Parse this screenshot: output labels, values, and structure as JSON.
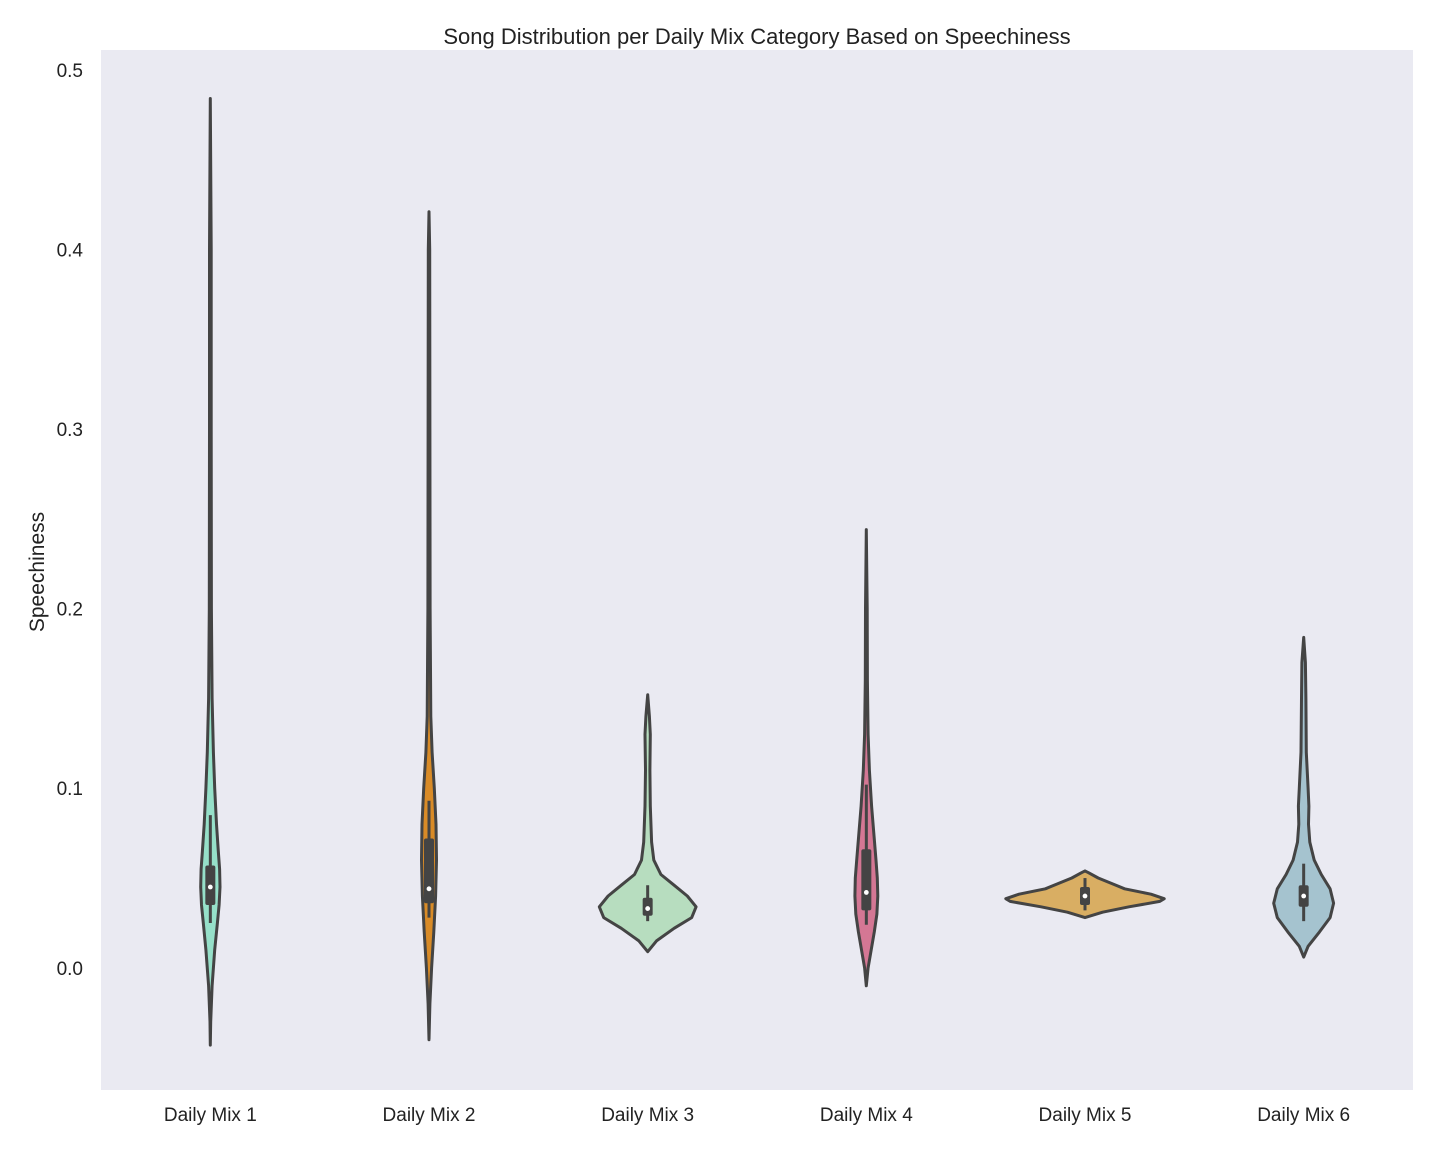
{
  "chart_data": {
    "type": "violin",
    "title": "Song Distribution per Daily Mix Category Based on Speechiness",
    "xlabel": "",
    "ylabel": "Speechiness",
    "ylim": [
      -0.068,
      0.511
    ],
    "yticks": [
      "0.0",
      "0.1",
      "0.2",
      "0.3",
      "0.4",
      "0.5"
    ],
    "ytick_values": [
      0.0,
      0.1,
      0.2,
      0.3,
      0.4,
      0.5
    ],
    "grid": false,
    "legend": "none",
    "background": "#EAEAF2",
    "outline_color": "#444444",
    "categories": [
      "Daily Mix 1",
      "Daily Mix 2",
      "Daily Mix 3",
      "Daily Mix 4",
      "Daily Mix 5",
      "Daily Mix 6"
    ],
    "violins": [
      {
        "category": "Daily Mix 1",
        "color": "#96E0C9",
        "profile": [
          [
            -0.043,
            0.0
          ],
          [
            -0.03,
            0.004
          ],
          [
            -0.01,
            0.02
          ],
          [
            0.01,
            0.05
          ],
          [
            0.025,
            0.08
          ],
          [
            0.035,
            0.1
          ],
          [
            0.045,
            0.11
          ],
          [
            0.055,
            0.105
          ],
          [
            0.065,
            0.09
          ],
          [
            0.08,
            0.07
          ],
          [
            0.1,
            0.05
          ],
          [
            0.12,
            0.035
          ],
          [
            0.15,
            0.02
          ],
          [
            0.2,
            0.012
          ],
          [
            0.3,
            0.01
          ],
          [
            0.4,
            0.01
          ],
          [
            0.484,
            0.0
          ]
        ],
        "box": {
          "q1": 0.035,
          "median": 0.045,
          "q3": 0.057,
          "whisker_low": 0.025,
          "whisker_high": 0.085
        }
      },
      {
        "category": "Daily Mix 2",
        "color": "#D98B27",
        "profile": [
          [
            -0.04,
            0.0
          ],
          [
            -0.02,
            0.01
          ],
          [
            0.0,
            0.03
          ],
          [
            0.02,
            0.055
          ],
          [
            0.04,
            0.075
          ],
          [
            0.06,
            0.085
          ],
          [
            0.08,
            0.08
          ],
          [
            0.1,
            0.06
          ],
          [
            0.12,
            0.035
          ],
          [
            0.14,
            0.02
          ],
          [
            0.2,
            0.012
          ],
          [
            0.3,
            0.01
          ],
          [
            0.4,
            0.008
          ],
          [
            0.421,
            0.0
          ]
        ],
        "box": {
          "q1": 0.036,
          "median": 0.044,
          "q3": 0.072,
          "whisker_low": 0.028,
          "whisker_high": 0.093
        }
      },
      {
        "category": "Daily Mix 3",
        "color": "#B7DDBF",
        "profile": [
          [
            0.009,
            0.0
          ],
          [
            0.015,
            0.1
          ],
          [
            0.022,
            0.3
          ],
          [
            0.028,
            0.5
          ],
          [
            0.034,
            0.55
          ],
          [
            0.04,
            0.45
          ],
          [
            0.046,
            0.3
          ],
          [
            0.052,
            0.15
          ],
          [
            0.06,
            0.07
          ],
          [
            0.07,
            0.045
          ],
          [
            0.09,
            0.03
          ],
          [
            0.11,
            0.025
          ],
          [
            0.13,
            0.03
          ],
          [
            0.14,
            0.02
          ],
          [
            0.152,
            0.0
          ]
        ],
        "box": {
          "q1": 0.029,
          "median": 0.033,
          "q3": 0.039,
          "whisker_low": 0.026,
          "whisker_high": 0.046
        }
      },
      {
        "category": "Daily Mix 4",
        "color": "#D47794",
        "profile": [
          [
            -0.01,
            0.0
          ],
          [
            0.0,
            0.02
          ],
          [
            0.01,
            0.055
          ],
          [
            0.02,
            0.09
          ],
          [
            0.03,
            0.12
          ],
          [
            0.04,
            0.13
          ],
          [
            0.05,
            0.125
          ],
          [
            0.06,
            0.11
          ],
          [
            0.075,
            0.085
          ],
          [
            0.09,
            0.06
          ],
          [
            0.11,
            0.035
          ],
          [
            0.13,
            0.02
          ],
          [
            0.16,
            0.012
          ],
          [
            0.2,
            0.01
          ],
          [
            0.244,
            0.0
          ]
        ],
        "box": {
          "q1": 0.032,
          "median": 0.042,
          "q3": 0.066,
          "whisker_low": 0.024,
          "whisker_high": 0.102
        }
      },
      {
        "category": "Daily Mix 5",
        "color": "#D9AE63",
        "profile": [
          [
            0.028,
            0.0
          ],
          [
            0.031,
            0.2
          ],
          [
            0.034,
            0.5
          ],
          [
            0.037,
            0.85
          ],
          [
            0.0385,
            0.9
          ],
          [
            0.041,
            0.75
          ],
          [
            0.044,
            0.45
          ],
          [
            0.047,
            0.3
          ],
          [
            0.05,
            0.15
          ],
          [
            0.053,
            0.04
          ],
          [
            0.054,
            0.0
          ]
        ],
        "box": {
          "q1": 0.035,
          "median": 0.04,
          "q3": 0.045,
          "whisker_low": 0.032,
          "whisker_high": 0.05
        }
      },
      {
        "category": "Daily Mix 6",
        "color": "#A5C3CF",
        "profile": [
          [
            0.006,
            0.0
          ],
          [
            0.012,
            0.05
          ],
          [
            0.02,
            0.18
          ],
          [
            0.028,
            0.3
          ],
          [
            0.036,
            0.34
          ],
          [
            0.044,
            0.3
          ],
          [
            0.052,
            0.2
          ],
          [
            0.06,
            0.12
          ],
          [
            0.07,
            0.07
          ],
          [
            0.08,
            0.055
          ],
          [
            0.09,
            0.06
          ],
          [
            0.1,
            0.05
          ],
          [
            0.12,
            0.03
          ],
          [
            0.15,
            0.025
          ],
          [
            0.17,
            0.02
          ],
          [
            0.184,
            0.0
          ]
        ],
        "box": {
          "q1": 0.034,
          "median": 0.04,
          "q3": 0.046,
          "whisker_low": 0.026,
          "whisker_high": 0.058
        }
      }
    ]
  }
}
